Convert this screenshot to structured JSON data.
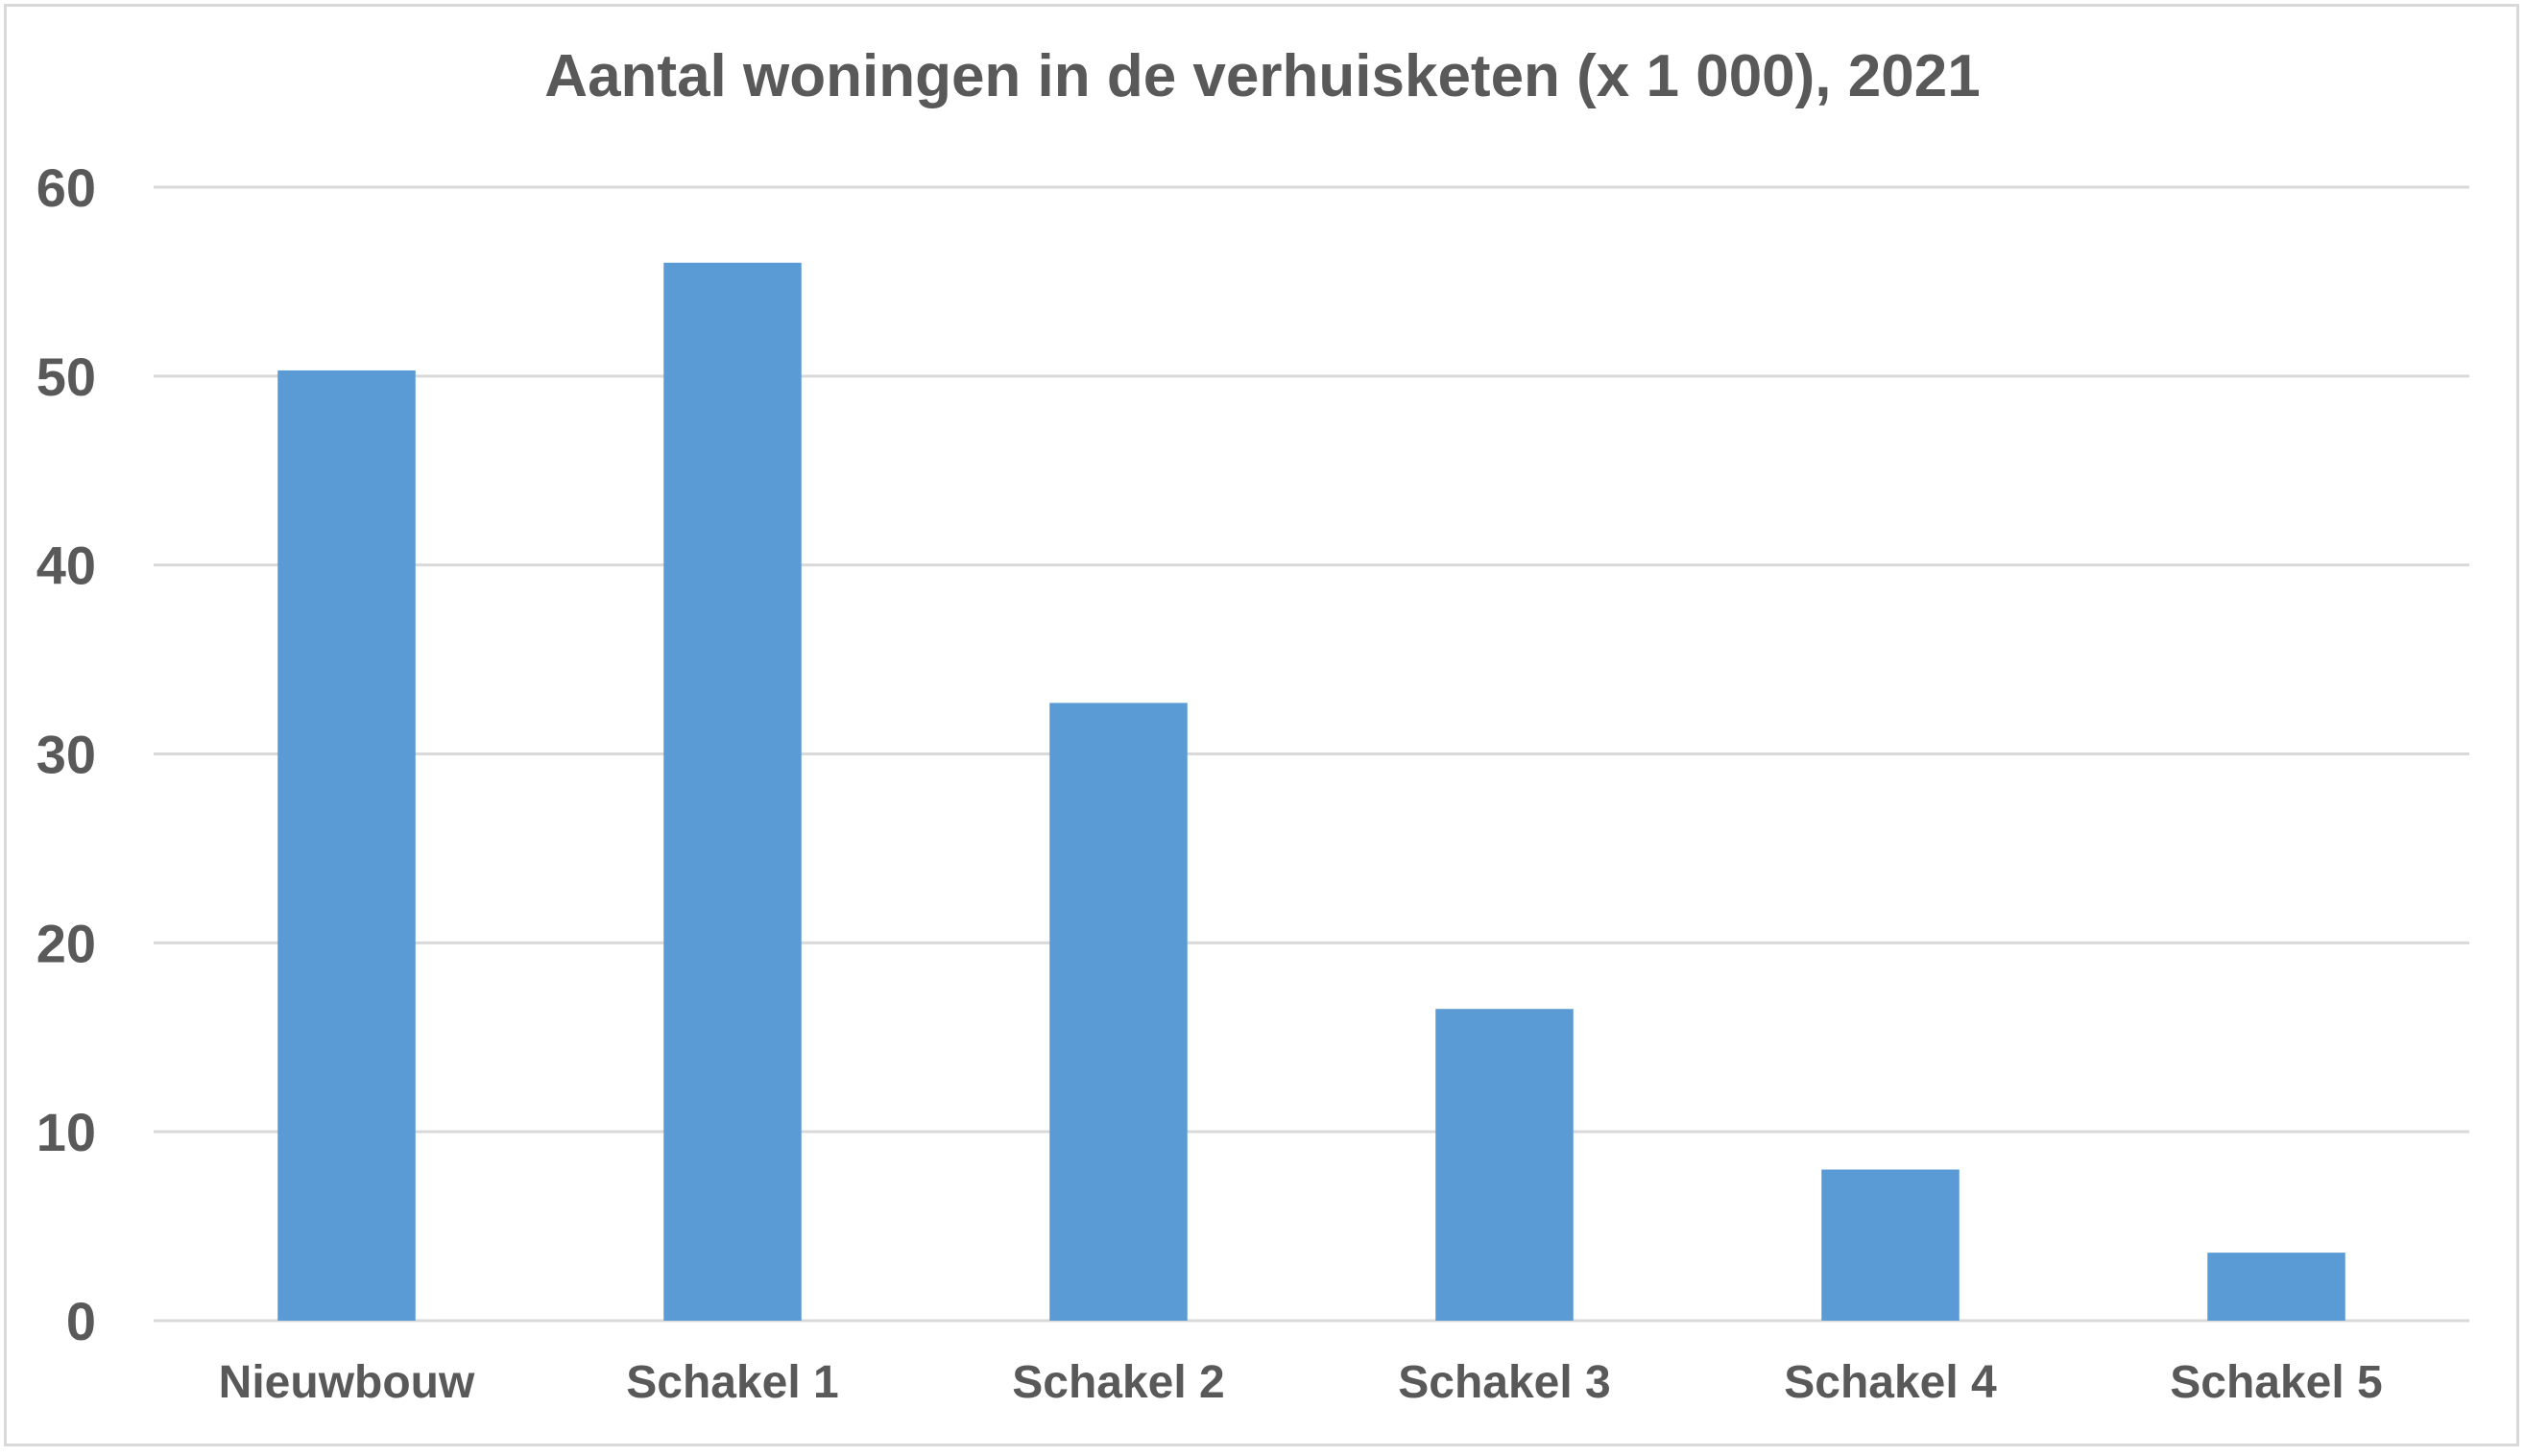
{
  "chart_data": {
    "type": "bar",
    "title": "Aantal woningen in de verhuisketen (x 1 000), 2021",
    "categories": [
      "Nieuwbouw",
      "Schakel 1",
      "Schakel 2",
      "Schakel 3",
      "Schakel 4",
      "Schakel 5"
    ],
    "values": [
      50.3,
      56.0,
      32.7,
      16.5,
      8.0,
      3.6
    ],
    "ylim": [
      0,
      60
    ],
    "yticks": [
      "0",
      "10",
      "20",
      "30",
      "40",
      "50",
      "60"
    ],
    "grid": true,
    "legend": "none",
    "bar_color": "#5b9bd5",
    "text_color": "#595959",
    "grid_color": "#d9d9d9"
  }
}
